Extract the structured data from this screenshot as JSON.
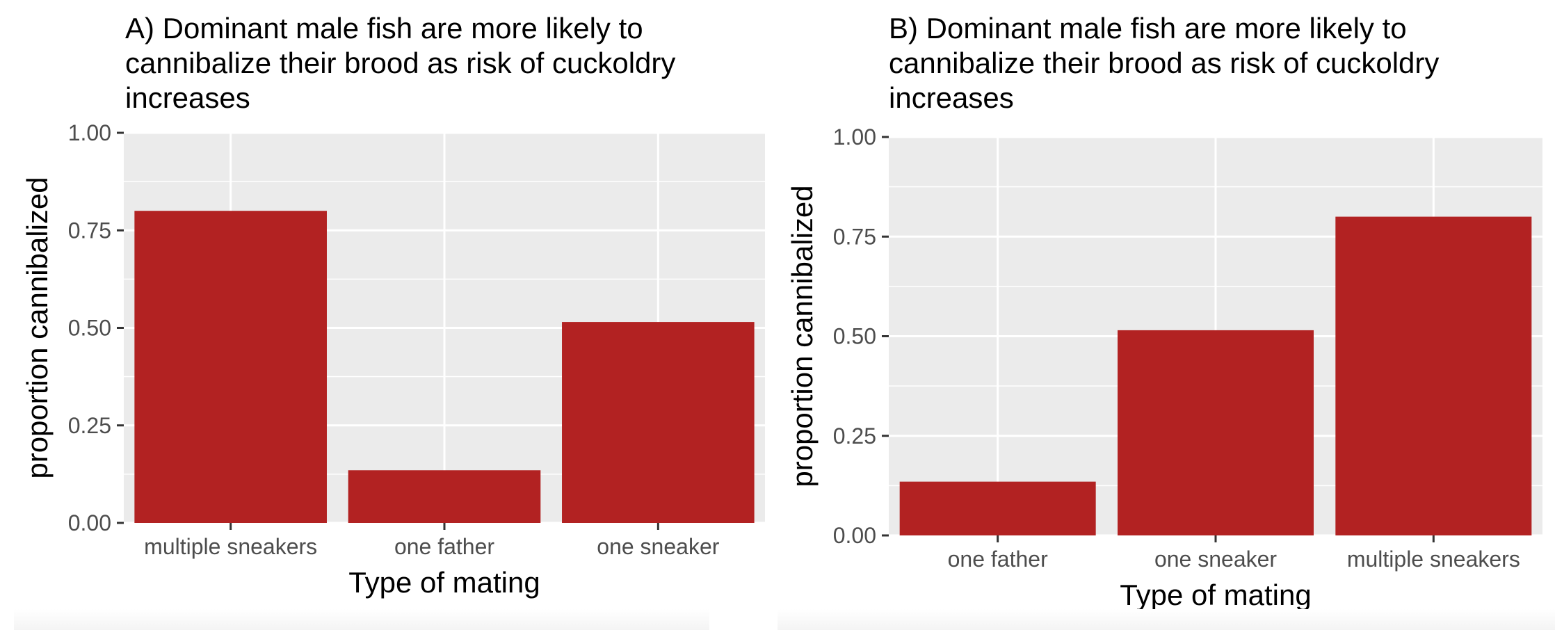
{
  "chart_data": [
    {
      "type": "bar",
      "title": "A) Dominant male fish are more likely to cannibalize their brood as risk of cuckoldry increases",
      "xlabel": "Type of mating",
      "ylabel": "proportion cannibalized",
      "categories": [
        "multiple sneakers",
        "one father",
        "one sneaker"
      ],
      "values": [
        0.8,
        0.135,
        0.515
      ],
      "ylim": [
        0,
        1
      ],
      "yticks": [
        "0.00",
        "0.25",
        "0.50",
        "0.75",
        "1.00"
      ],
      "bar_color": "#b22222",
      "panel_background": "#ebebeb",
      "grid": true
    },
    {
      "type": "bar",
      "title": "B) Dominant male fish are more likely to cannibalize their brood as risk of cuckoldry increases",
      "xlabel": "Type of mating",
      "ylabel": "proportion cannibalized",
      "categories": [
        "one father",
        "one sneaker",
        "multiple sneakers"
      ],
      "values": [
        0.135,
        0.515,
        0.8
      ],
      "ylim": [
        0,
        1
      ],
      "yticks": [
        "0.00",
        "0.25",
        "0.50",
        "0.75",
        "1.00"
      ],
      "bar_color": "#b22222",
      "panel_background": "#ebebeb",
      "grid": true
    }
  ]
}
